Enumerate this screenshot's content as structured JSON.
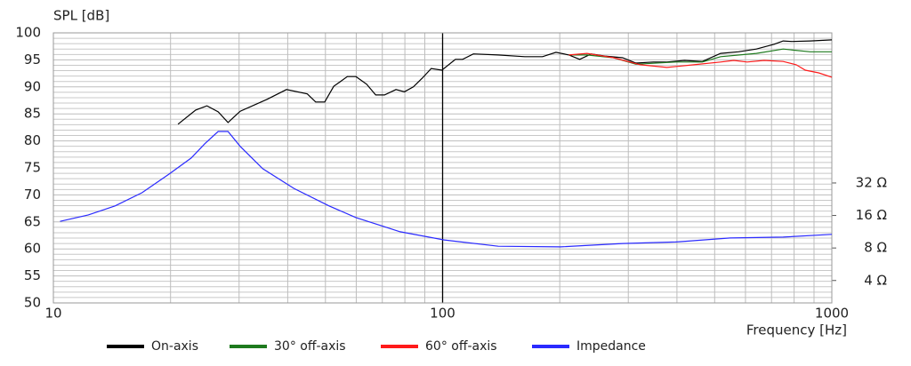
{
  "chart_data": {
    "type": "line",
    "y_label": "SPL [dB]",
    "x_label": "Frequency [Hz]",
    "xscale": "log",
    "xlim": [
      10,
      1000
    ],
    "xticks": [
      10,
      100,
      1000
    ],
    "xminorticks": [
      20,
      30,
      40,
      50,
      60,
      70,
      80,
      90,
      200,
      300,
      400,
      500,
      600,
      700,
      800,
      900
    ],
    "ylim": [
      50,
      100
    ],
    "yticks": [
      100,
      95,
      90,
      85,
      80,
      75,
      70,
      65,
      60,
      55,
      50
    ],
    "y2scale": "log",
    "y2lim": [
      2.48,
      785
    ],
    "y2ticks": [
      {
        "value": 32,
        "label": "32 Ω"
      },
      {
        "value": 16,
        "label": "16 Ω"
      },
      {
        "value": 8,
        "label": "8 Ω"
      },
      {
        "value": 4,
        "label": "4 Ω"
      }
    ],
    "grid": true,
    "legend": "bottom",
    "series": [
      {
        "name": "On-axis",
        "color": "#000000",
        "x": [
          20.9,
          23.2,
          24.8,
          26.5,
          28.1,
          30.2,
          35.4,
          39.7,
          44.9,
          47.2,
          49.8,
          52.5,
          56.9,
          59.9,
          63.8,
          67.3,
          70.9,
          75.9,
          79.8,
          84.1,
          88.6,
          93.5,
          99.6,
          107.9,
          112.6,
          120,
          138.8,
          162.6,
          180.6,
          195.5,
          211.3,
          225,
          241,
          261,
          290,
          314,
          348,
          377,
          418,
          465,
          518,
          575,
          640,
          711,
          750,
          790,
          880,
          1000
        ],
        "values": [
          83.1,
          85.7,
          86.5,
          85.4,
          83.4,
          85.5,
          87.7,
          89.5,
          88.7,
          87.2,
          87.2,
          90.1,
          91.9,
          91.9,
          90.5,
          88.5,
          88.5,
          89.5,
          89.1,
          90.0,
          91.6,
          93.4,
          93.1,
          95.1,
          95.1,
          96.1,
          95.9,
          95.6,
          95.6,
          96.4,
          95.9,
          95.1,
          96.1,
          95.7,
          95.4,
          94.4,
          94.6,
          94.6,
          94.9,
          94.7,
          96.2,
          96.5,
          97.0,
          97.9,
          98.5,
          98.4,
          98.5,
          98.7
        ]
      },
      {
        "name": "30° off-axis",
        "color": "#1e7a1e",
        "x": [
          211,
          235,
          275,
          314,
          397,
          465,
          518,
          640,
          750,
          880,
          1000
        ],
        "values": [
          95.9,
          95.9,
          95.4,
          94.2,
          94.6,
          94.6,
          95.6,
          96.2,
          97.0,
          96.5,
          96.5
        ]
      },
      {
        "name": "60° off-axis",
        "color": "#ff1a1a",
        "x": [
          211,
          235,
          275,
          322,
          377,
          442,
          518,
          560,
          606,
          670,
          750,
          810,
          855,
          925,
          1000
        ],
        "values": [
          95.9,
          96.2,
          95.4,
          94.1,
          93.6,
          94.1,
          94.6,
          94.9,
          94.6,
          94.9,
          94.7,
          94.1,
          93.1,
          92.6,
          91.8
        ]
      },
      {
        "name": "Impedance",
        "color": "#2a2aff",
        "axis": "y2",
        "x": [
          10.4,
          12.3,
          14.4,
          16.9,
          19.8,
          22.6,
          24.5,
          26.5,
          28.1,
          30.2,
          34.5,
          41.5,
          51.1,
          59.9,
          77.8,
          101,
          139,
          201,
          290,
          397,
          548,
          750,
          1000
        ],
        "values": [
          14.1,
          16.2,
          19.6,
          26,
          38.6,
          54.4,
          74,
          96,
          96,
          69.8,
          43.4,
          28.5,
          19.6,
          15.3,
          11.3,
          9.5,
          8.3,
          8.2,
          8.8,
          9.1,
          9.9,
          10.1,
          10.7
        ]
      }
    ]
  }
}
